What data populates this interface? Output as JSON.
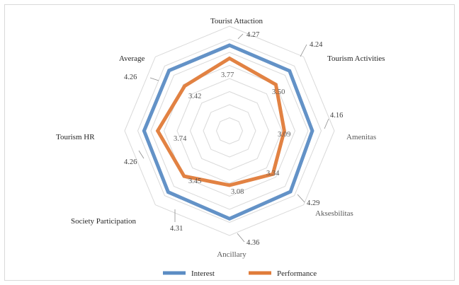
{
  "chart_data": {
    "type": "radar",
    "categories": [
      "Tourist Attaction",
      "Tourism Activities",
      "Amenitas",
      "Aksesbilitas",
      "Ancillary",
      "Society Participation",
      "Tourism HR",
      "Average"
    ],
    "series": [
      {
        "name": "Interest",
        "values": [
          4.27,
          4.24,
          4.16,
          4.29,
          4.36,
          4.31,
          4.26,
          4.26
        ],
        "color": "#5b8cc4"
      },
      {
        "name": "Performance",
        "values": [
          3.77,
          3.5,
          3.09,
          3.34,
          3.08,
          3.45,
          3.74,
          3.42
        ],
        "color": "#e07b39"
      }
    ],
    "value_labels": {
      "Interest": [
        "4.27",
        "4.24",
        "4.16",
        "4.29",
        "4.36",
        "4.31",
        "4.26",
        "4.26"
      ],
      "Performance": [
        "3.77",
        "3.50",
        "3.09",
        "3.34",
        "3.08",
        "3.45",
        "3.74",
        "3.42"
      ]
    },
    "legend": {
      "position": "bottom",
      "items": [
        "Interest",
        "Performance"
      ]
    },
    "grid": true,
    "axis_range": [
      1,
      5
    ],
    "grid_color": "#d9d9d9"
  }
}
